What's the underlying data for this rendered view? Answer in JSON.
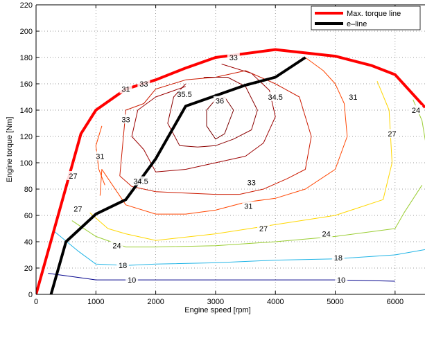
{
  "chart_data": {
    "type": "line",
    "title": "",
    "xlabel": "Engine speed [rpm]",
    "ylabel": "Engine torque [Nm]",
    "xlim": [
      0,
      6500
    ],
    "ylim": [
      0,
      220
    ],
    "xticks": [
      0,
      1000,
      2000,
      3000,
      4000,
      5000,
      6000
    ],
    "yticks": [
      0,
      20,
      40,
      60,
      80,
      100,
      120,
      140,
      160,
      180,
      200,
      220
    ],
    "grid": true,
    "legend_position": "top-right",
    "series": [
      {
        "name": "Max. torque line",
        "color": "#ff0000",
        "x": [
          0,
          750,
          1000,
          1500,
          2000,
          2500,
          3000,
          3500,
          4000,
          5000,
          5600,
          6000,
          6500
        ],
        "y": [
          0,
          122,
          140,
          156,
          163,
          172,
          180,
          183,
          186,
          181,
          174,
          167,
          142
        ]
      },
      {
        "name": "e–line",
        "color": "#000000",
        "x": [
          250,
          500,
          1000,
          1500,
          2000,
          2500,
          3000,
          3500,
          4000,
          4500
        ],
        "y": [
          0,
          40,
          61,
          72,
          103,
          143,
          151,
          159,
          165,
          180
        ]
      }
    ],
    "contours": [
      {
        "level": "10",
        "color": "#00008b",
        "x": [
          200,
          1000,
          2000,
          3000,
          4000,
          5000,
          6000
        ],
        "y": [
          16,
          11,
          11,
          11,
          11,
          11,
          10
        ]
      },
      {
        "level": "18",
        "color": "#1fb4e6",
        "x": [
          300,
          700,
          1000,
          1500,
          2000,
          3000,
          4000,
          5000,
          6000,
          6500
        ],
        "y": [
          48,
          33,
          23,
          22,
          23,
          24,
          26,
          27,
          30,
          34
        ]
      },
      {
        "level": "24",
        "color": "#9acd32",
        "x": [
          600,
          1000,
          1500,
          2000,
          3000,
          4000,
          5000,
          6000,
          6150,
          6450
        ],
        "y": [
          56,
          44,
          36,
          36,
          37,
          40,
          44,
          50,
          62,
          83
        ]
      },
      {
        "level": "24",
        "color": "#9acd32",
        "x": [
          6300,
          6450,
          6520
        ],
        "y": [
          148,
          132,
          113
        ]
      },
      {
        "level": "27",
        "color": "#ffd700",
        "x": [
          900,
          1200,
          1500,
          2000,
          3000,
          4000,
          5000,
          5800,
          5950,
          5900,
          5700
        ],
        "y": [
          62,
          50,
          46,
          41,
          46,
          53,
          60,
          72,
          100,
          140,
          162
        ]
      },
      {
        "level": "31",
        "color": "#ff4500",
        "x": [
          1070,
          1100,
          1500,
          2000,
          2500,
          3000,
          3500,
          4000,
          4500,
          5000,
          5200,
          5150,
          5000,
          4800,
          4500
        ],
        "y": [
          75,
          95,
          68,
          61,
          61,
          64,
          70,
          73,
          80,
          95,
          120,
          145,
          160,
          170,
          180
        ]
      },
      {
        "level": "31",
        "color": "#ff4500",
        "x": [
          1100,
          1000,
          1050,
          1150
        ],
        "y": [
          128,
          113,
          95,
          83
        ]
      },
      {
        "level": "33",
        "color": "#cc1a00",
        "x": [
          1400,
          1500,
          1800,
          2000,
          2500,
          3000,
          3500,
          4000,
          4400,
          4600,
          4500,
          4200,
          3800,
          3400
        ],
        "y": [
          90,
          140,
          145,
          156,
          163,
          165,
          170,
          160,
          150,
          120,
          95,
          88,
          80,
          76
        ]
      },
      {
        "level": "33",
        "color": "#cc1a00",
        "x": [
          1400,
          1600,
          2000,
          2500,
          3000,
          3400
        ],
        "y": [
          90,
          82,
          78,
          77,
          76,
          76
        ]
      },
      {
        "level": "34.5",
        "color": "#9b0000",
        "x": [
          2500,
          2000,
          1700,
          1600,
          1800,
          2000,
          2500,
          3000,
          3500,
          3800,
          4000,
          3900,
          3600,
          3100
        ],
        "y": [
          158,
          150,
          140,
          120,
          110,
          93,
          95,
          100,
          105,
          115,
          135,
          155,
          168,
          175
        ]
      },
      {
        "level": "35.5",
        "color": "#8b0000",
        "x": [
          2500,
          2300,
          2200,
          2400,
          2700,
          3000,
          3300,
          3600,
          3700,
          3500,
          3200,
          2800
        ],
        "y": [
          160,
          150,
          130,
          113,
          112,
          113,
          118,
          125,
          140,
          158,
          165,
          165
        ]
      },
      {
        "level": "36",
        "color": "#7a0000",
        "x": [
          3000,
          2850,
          2850,
          3000,
          3150,
          3300,
          3150,
          3000
        ],
        "y": [
          148,
          140,
          128,
          118,
          122,
          140,
          150,
          148
        ]
      }
    ],
    "contour_labels": [
      {
        "text": "10",
        "x": 1600,
        "y": 11
      },
      {
        "text": "10",
        "x": 5100,
        "y": 11
      },
      {
        "text": "18",
        "x": 1450,
        "y": 22
      },
      {
        "text": "18",
        "x": 5050,
        "y": 28
      },
      {
        "text": "24",
        "x": 1350,
        "y": 37
      },
      {
        "text": "24",
        "x": 4850,
        "y": 46
      },
      {
        "text": "24",
        "x": 6350,
        "y": 140
      },
      {
        "text": "27",
        "x": 620,
        "y": 90
      },
      {
        "text": "27",
        "x": 700,
        "y": 65
      },
      {
        "text": "27",
        "x": 3800,
        "y": 50
      },
      {
        "text": "27",
        "x": 5950,
        "y": 122
      },
      {
        "text": "31",
        "x": 1070,
        "y": 105
      },
      {
        "text": "31",
        "x": 3550,
        "y": 67
      },
      {
        "text": "31",
        "x": 5300,
        "y": 150
      },
      {
        "text": "33",
        "x": 1500,
        "y": 133
      },
      {
        "text": "33",
        "x": 1800,
        "y": 160
      },
      {
        "text": "33",
        "x": 3600,
        "y": 85
      },
      {
        "text": "33",
        "x": 3300,
        "y": 180
      },
      {
        "text": "34.5",
        "x": 1750,
        "y": 86
      },
      {
        "text": "34.5",
        "x": 4000,
        "y": 150
      },
      {
        "text": "35.5",
        "x": 2480,
        "y": 152
      },
      {
        "text": "36",
        "x": 3070,
        "y": 147
      },
      {
        "text": "31",
        "x": 1500,
        "y": 156
      }
    ]
  }
}
